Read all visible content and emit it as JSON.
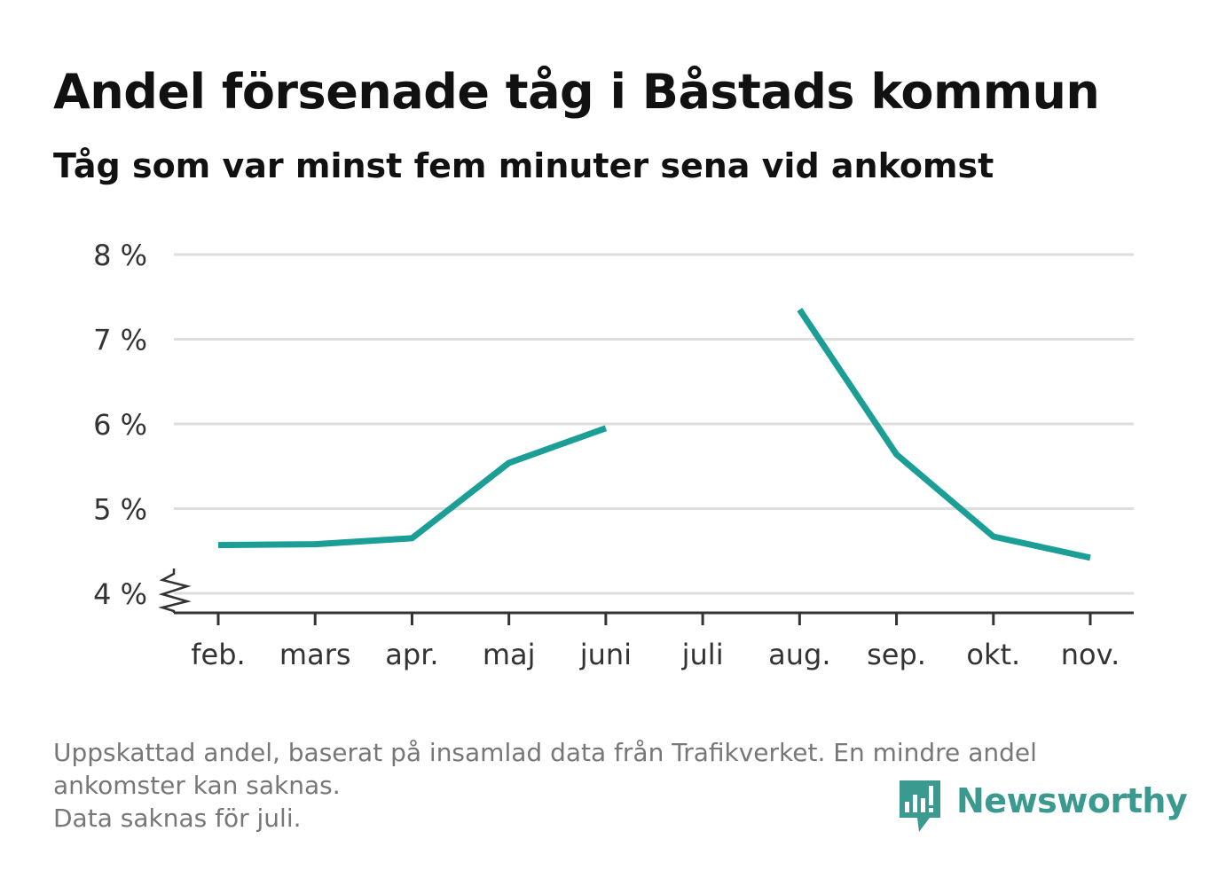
{
  "title": "Andel försenade tåg i Båstads kommun",
  "subtitle": "Tåg som var minst fem minuter sena vid ankomst",
  "footnote": [
    "Uppskattad andel, baserat på insamlad data från Trafikverket. En mindre andel",
    "ankomster kan saknas.",
    "Data saknas för juli."
  ],
  "brand": {
    "name": "Newsworthy",
    "icon": "newsworthy-logo-icon",
    "color": "#3a9a8f"
  },
  "chart_data": {
    "type": "line",
    "title": "Andel försenade tåg i Båstads kommun",
    "subtitle": "Tåg som var minst fem minuter sena vid ankomst",
    "xlabel": "",
    "ylabel": "",
    "categories": [
      "feb.",
      "mars",
      "apr.",
      "maj",
      "juni",
      "juli",
      "aug.",
      "sep.",
      "okt.",
      "nov."
    ],
    "series": [
      {
        "color": "#1a9e96",
        "values": [
          4.57,
          4.58,
          4.65,
          5.54,
          5.95,
          null,
          7.35,
          5.64,
          4.67,
          4.42
        ]
      }
    ],
    "ylim": [
      4,
      8
    ],
    "yticks": [
      4,
      5,
      6,
      7,
      8
    ],
    "ytick_labels": [
      "4 %",
      "5 %",
      "6 %",
      "7 %",
      "8 %"
    ],
    "y_axis_break": true,
    "grid": true,
    "legend": "none"
  }
}
